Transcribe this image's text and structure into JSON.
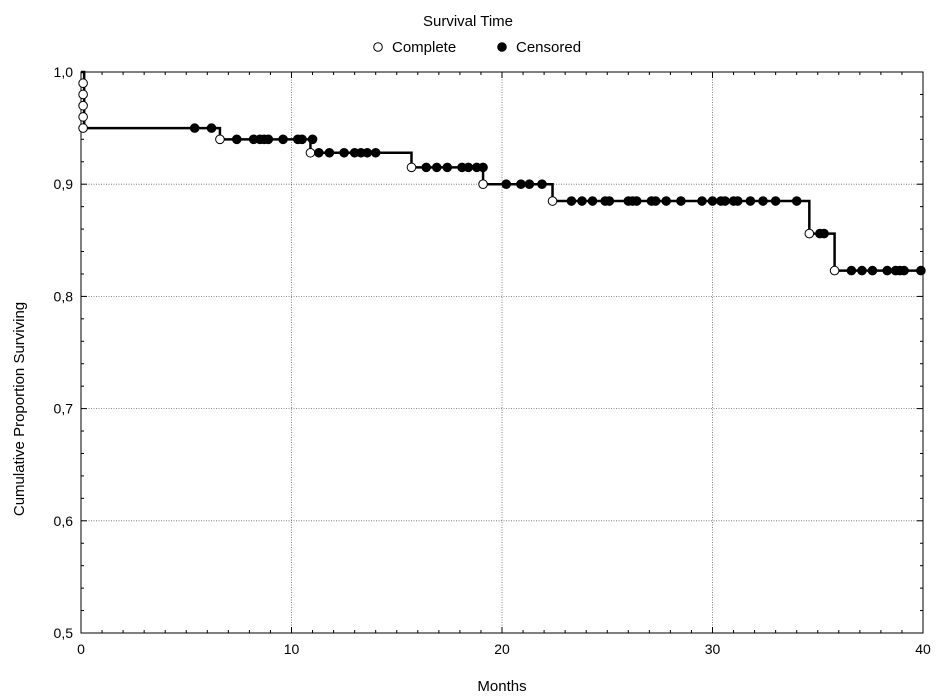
{
  "chart_data": {
    "type": "line",
    "title": "Survival Time",
    "xlabel": "Months",
    "ylabel": "Cumulative Proportion Surviving",
    "xlim": [
      0,
      40
    ],
    "ylim": [
      0.5,
      1.0
    ],
    "x_ticks": [
      0,
      10,
      20,
      30,
      40
    ],
    "x_tick_labels": [
      "0",
      "10",
      "20",
      "30",
      "40"
    ],
    "y_ticks": [
      0.5,
      0.6,
      0.7,
      0.8,
      0.9,
      1.0
    ],
    "y_tick_labels": [
      "0,5",
      "0,6",
      "0,7",
      "0,8",
      "0,9",
      "1,0"
    ],
    "grid": true,
    "legend_position": "top-center",
    "legend": [
      {
        "label": "Complete",
        "marker": "open-circle"
      },
      {
        "label": "Censored",
        "marker": "filled-circle"
      }
    ],
    "line_color": "#000000",
    "step_curve": [
      [
        0,
        1.0
      ],
      [
        0.15,
        0.95
      ],
      [
        6.6,
        0.94
      ],
      [
        10.9,
        0.928
      ],
      [
        15.7,
        0.915
      ],
      [
        19.1,
        0.9
      ],
      [
        22.4,
        0.885
      ],
      [
        34.6,
        0.856
      ],
      [
        35.8,
        0.823
      ],
      [
        40,
        0.823
      ]
    ],
    "series": [
      {
        "name": "Complete",
        "points": [
          [
            0.1,
            0.99
          ],
          [
            0.1,
            0.98
          ],
          [
            0.1,
            0.97
          ],
          [
            0.1,
            0.96
          ],
          [
            0.1,
            0.95
          ],
          [
            6.6,
            0.94
          ],
          [
            10.9,
            0.928
          ],
          [
            15.7,
            0.915
          ],
          [
            19.1,
            0.9
          ],
          [
            22.4,
            0.885
          ],
          [
            34.6,
            0.856
          ],
          [
            35.8,
            0.823
          ]
        ]
      },
      {
        "name": "Censored",
        "points": [
          [
            5.4,
            0.95
          ],
          [
            6.2,
            0.95
          ],
          [
            7.4,
            0.94
          ],
          [
            8.2,
            0.94
          ],
          [
            8.5,
            0.94
          ],
          [
            8.7,
            0.94
          ],
          [
            8.9,
            0.94
          ],
          [
            9.6,
            0.94
          ],
          [
            10.3,
            0.94
          ],
          [
            10.5,
            0.94
          ],
          [
            11.0,
            0.94
          ],
          [
            11.3,
            0.928
          ],
          [
            11.8,
            0.928
          ],
          [
            12.5,
            0.928
          ],
          [
            13.0,
            0.928
          ],
          [
            13.3,
            0.928
          ],
          [
            13.6,
            0.928
          ],
          [
            14.0,
            0.928
          ],
          [
            16.4,
            0.915
          ],
          [
            16.9,
            0.915
          ],
          [
            17.4,
            0.915
          ],
          [
            18.1,
            0.915
          ],
          [
            18.4,
            0.915
          ],
          [
            18.8,
            0.915
          ],
          [
            19.1,
            0.915
          ],
          [
            20.2,
            0.9
          ],
          [
            20.9,
            0.9
          ],
          [
            21.3,
            0.9
          ],
          [
            21.9,
            0.9
          ],
          [
            23.3,
            0.885
          ],
          [
            23.8,
            0.885
          ],
          [
            24.3,
            0.885
          ],
          [
            24.9,
            0.885
          ],
          [
            25.1,
            0.885
          ],
          [
            26.0,
            0.885
          ],
          [
            26.2,
            0.885
          ],
          [
            26.4,
            0.885
          ],
          [
            27.1,
            0.885
          ],
          [
            27.3,
            0.885
          ],
          [
            27.8,
            0.885
          ],
          [
            28.5,
            0.885
          ],
          [
            29.5,
            0.885
          ],
          [
            30.0,
            0.885
          ],
          [
            30.4,
            0.885
          ],
          [
            30.6,
            0.885
          ],
          [
            31.0,
            0.885
          ],
          [
            31.2,
            0.885
          ],
          [
            31.8,
            0.885
          ],
          [
            32.4,
            0.885
          ],
          [
            33.0,
            0.885
          ],
          [
            34.0,
            0.885
          ],
          [
            35.1,
            0.856
          ],
          [
            35.3,
            0.856
          ],
          [
            36.6,
            0.823
          ],
          [
            37.1,
            0.823
          ],
          [
            37.6,
            0.823
          ],
          [
            38.3,
            0.823
          ],
          [
            38.7,
            0.823
          ],
          [
            38.9,
            0.823
          ],
          [
            39.1,
            0.823
          ],
          [
            39.9,
            0.823
          ]
        ]
      }
    ]
  }
}
